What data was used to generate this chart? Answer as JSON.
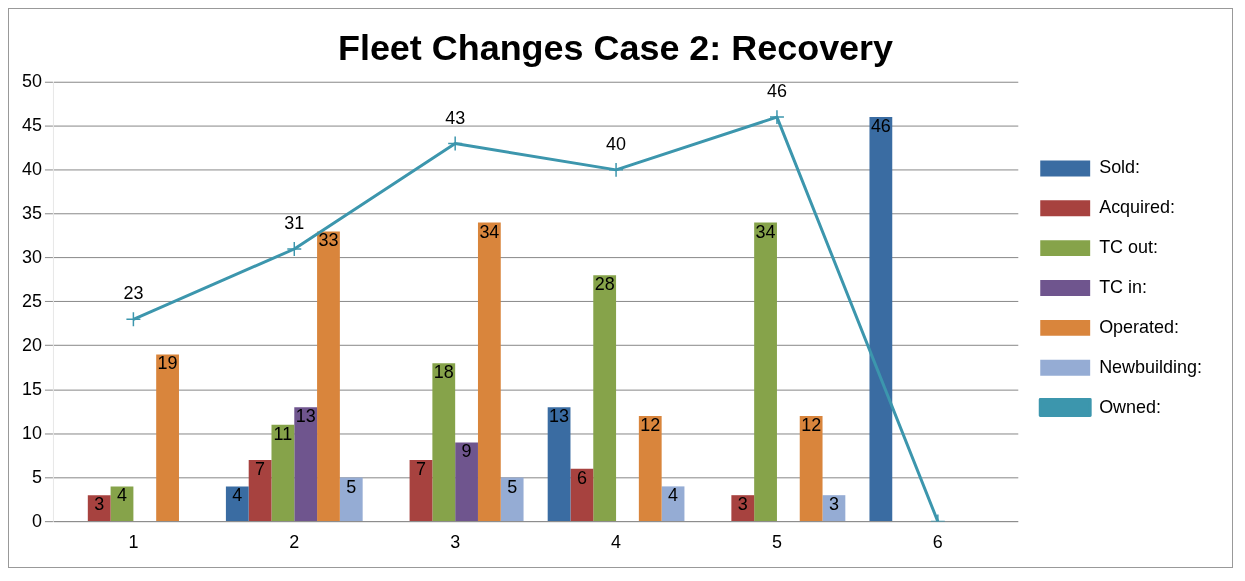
{
  "chart_data": {
    "type": "bar",
    "title": "Fleet Changes Case 2: Recovery",
    "categories": [
      "1",
      "2",
      "3",
      "4",
      "5",
      "6"
    ],
    "ylim": [
      0,
      50
    ],
    "yticks": [
      0,
      5,
      10,
      15,
      20,
      25,
      30,
      35,
      40,
      45,
      50
    ],
    "grid": "y",
    "legend": "right",
    "series": [
      {
        "name": "Sold:",
        "color": "#3a6ca2",
        "values": [
          null,
          4,
          null,
          13,
          null,
          46
        ],
        "value_labels": [
          null,
          "4",
          null,
          "13",
          null,
          "46"
        ]
      },
      {
        "name": "Acquired:",
        "color": "#a7423f",
        "values": [
          3,
          7,
          7,
          6,
          3,
          null
        ],
        "value_labels": [
          "3",
          "7",
          "7",
          "6",
          "3",
          null
        ]
      },
      {
        "name": "TC out:",
        "color": "#86a34a",
        "values": [
          4,
          11,
          18,
          28,
          34,
          null
        ],
        "value_labels": [
          "4",
          "11",
          "18",
          "28",
          "34",
          null
        ]
      },
      {
        "name": "TC in:",
        "color": "#6f558e",
        "values": [
          null,
          13,
          9,
          null,
          null,
          null
        ],
        "value_labels": [
          null,
          "13",
          "9",
          null,
          null,
          null
        ]
      },
      {
        "name": "Operated:",
        "color": "#d9853c",
        "values": [
          19,
          33,
          34,
          12,
          12,
          null
        ],
        "value_labels": [
          "19",
          "33",
          "34",
          "12",
          "12",
          null
        ]
      },
      {
        "name": "Newbuilding:",
        "color": "#95acd4",
        "values": [
          null,
          5,
          5,
          4,
          3,
          null
        ],
        "value_labels": [
          null,
          "5",
          "5",
          "4",
          "3",
          null
        ]
      },
      {
        "name": "Owned:",
        "type": "line",
        "marker": "cross",
        "color": "#3c96ad",
        "values": [
          23,
          31,
          43,
          40,
          46,
          0
        ],
        "value_labels": [
          "23",
          "31",
          "43",
          "40",
          "46",
          null
        ]
      }
    ]
  }
}
